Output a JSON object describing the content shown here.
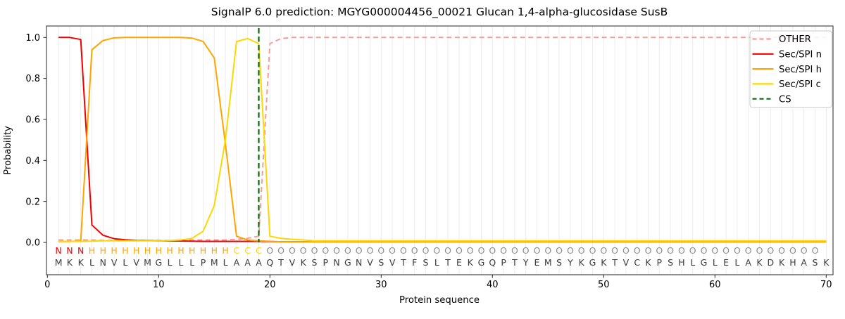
{
  "title": "SignalP 6.0 prediction: MGYG000004456_00021 Glucan 1,4-alpha-glucosidase SusB",
  "axes": {
    "xlabel": "Protein sequence",
    "ylabel": "Probability",
    "x_ticks": [
      0,
      10,
      20,
      30,
      40,
      50,
      60,
      70
    ],
    "y_ticks": [
      "0.0",
      "0.2",
      "0.4",
      "0.6",
      "0.8",
      "1.0"
    ],
    "xlim": [
      -0.1,
      70.6
    ],
    "ylim": [
      -0.16,
      1.06
    ],
    "grid": "light vertical gridline at every residue position 1-70"
  },
  "legend": {
    "position": "upper right",
    "items": [
      {
        "label": "OTHER",
        "color": "#F49E9E",
        "dash": true
      },
      {
        "label": "Sec/SPI n",
        "color": "#F20000",
        "dash": false
      },
      {
        "label": "Sec/SPI h",
        "color": "#FFA500",
        "dash": false
      },
      {
        "label": "Sec/SPI c",
        "color": "#FFD700",
        "dash": false
      },
      {
        "label": "CS",
        "color": "#0B6B0B",
        "dash": true
      }
    ]
  },
  "chart_data": {
    "type": "line",
    "x_positions": "1-70",
    "cs_position": 19,
    "series": [
      {
        "name": "OTHER",
        "color": "#F49E9E",
        "dash": true,
        "values": [
          0.012,
          0.012,
          0.012,
          0.012,
          0.01,
          0.01,
          0.01,
          0.01,
          0.01,
          0.01,
          0.01,
          0.01,
          0.012,
          0.012,
          0.012,
          0.012,
          0.015,
          0.02,
          0.03,
          0.97,
          0.995,
          1.0,
          1.0,
          1.0,
          1.0,
          1.0,
          1.0,
          1.0,
          1.0,
          1.0,
          1.0,
          1.0,
          1.0,
          1.0,
          1.0,
          1.0,
          1.0,
          1.0,
          1.0,
          1.0,
          1.0,
          1.0,
          1.0,
          1.0,
          1.0,
          1.0,
          1.0,
          1.0,
          1.0,
          1.0,
          1.0,
          1.0,
          1.0,
          1.0,
          1.0,
          1.0,
          1.0,
          1.0,
          1.0,
          1.0,
          1.0,
          1.0,
          1.0,
          1.0,
          1.0,
          1.0,
          1.0,
          1.0,
          1.0,
          1.0
        ]
      },
      {
        "name": "Sec/SPI n",
        "color": "#F20000",
        "dash": false,
        "values": [
          1.0,
          1.0,
          0.99,
          0.085,
          0.035,
          0.018,
          0.013,
          0.01,
          0.009,
          0.008,
          0.008,
          0.007,
          0.006,
          0.005,
          0.005,
          0.005,
          0.005,
          0.005,
          0.005,
          0.004,
          0.003,
          0.003,
          0.003,
          0.003,
          0.003,
          0.003,
          0.003,
          0.003,
          0.003,
          0.003,
          0.003,
          0.003,
          0.003,
          0.003,
          0.003,
          0.003,
          0.003,
          0.003,
          0.003,
          0.003,
          0.003,
          0.003,
          0.003,
          0.003,
          0.003,
          0.003,
          0.003,
          0.003,
          0.003,
          0.003,
          0.003,
          0.003,
          0.003,
          0.003,
          0.003,
          0.003,
          0.003,
          0.003,
          0.003,
          0.003,
          0.003,
          0.003,
          0.003,
          0.003,
          0.003,
          0.003,
          0.003,
          0.003,
          0.003,
          0.003
        ]
      },
      {
        "name": "Sec/SPI h",
        "color": "#FFA500",
        "dash": false,
        "values": [
          0.004,
          0.004,
          0.008,
          0.94,
          0.985,
          0.998,
          1.0,
          1.0,
          1.0,
          1.0,
          1.0,
          1.0,
          0.997,
          0.98,
          0.9,
          0.48,
          0.03,
          0.012,
          0.008,
          0.005,
          0.003,
          0.003,
          0.003,
          0.003,
          0.003,
          0.003,
          0.003,
          0.003,
          0.003,
          0.003,
          0.003,
          0.003,
          0.003,
          0.003,
          0.003,
          0.003,
          0.003,
          0.003,
          0.003,
          0.003,
          0.003,
          0.003,
          0.003,
          0.003,
          0.003,
          0.003,
          0.003,
          0.003,
          0.003,
          0.003,
          0.003,
          0.003,
          0.003,
          0.003,
          0.003,
          0.003,
          0.003,
          0.003,
          0.003,
          0.003,
          0.003,
          0.003,
          0.003,
          0.003,
          0.003,
          0.003,
          0.003,
          0.003,
          0.003,
          0.003
        ]
      },
      {
        "name": "Sec/SPI c",
        "color": "#FFD700",
        "dash": false,
        "values": [
          0.005,
          0.005,
          0.005,
          0.006,
          0.008,
          0.008,
          0.008,
          0.008,
          0.008,
          0.008,
          0.01,
          0.012,
          0.02,
          0.055,
          0.18,
          0.5,
          0.98,
          0.995,
          0.97,
          0.03,
          0.02,
          0.015,
          0.012,
          0.008,
          0.008,
          0.008,
          0.008,
          0.008,
          0.008,
          0.008,
          0.008,
          0.008,
          0.008,
          0.008,
          0.008,
          0.008,
          0.008,
          0.008,
          0.008,
          0.008,
          0.008,
          0.008,
          0.008,
          0.008,
          0.008,
          0.008,
          0.008,
          0.008,
          0.008,
          0.008,
          0.008,
          0.008,
          0.008,
          0.008,
          0.008,
          0.008,
          0.008,
          0.008,
          0.008,
          0.008,
          0.008,
          0.008,
          0.008,
          0.008,
          0.008,
          0.008,
          0.008,
          0.008,
          0.008,
          0.008
        ]
      }
    ],
    "region_labels": "NNNHHHHHHHHHHHHHCCCOOOOOOOOOOOOOOOOOOOOOOOOOOOOOOOOOOOOOOOOOOOOOOOOOO",
    "sequence": "MKKLNVLVMGLLLPMLAAAQTVKSPNGNVSVTFSLTEKGQPTYEMSYKGKTVCKPSHLGLELAKDKHASK"
  },
  "region_colors": {
    "N": "#F20000",
    "H": "#FFA500",
    "C": "#FFD700",
    "O": "#8C8C8C"
  },
  "sequence_color": "#3A3A3A",
  "cs_color": "#0B6B0B",
  "grid_color": "#ECECEC"
}
